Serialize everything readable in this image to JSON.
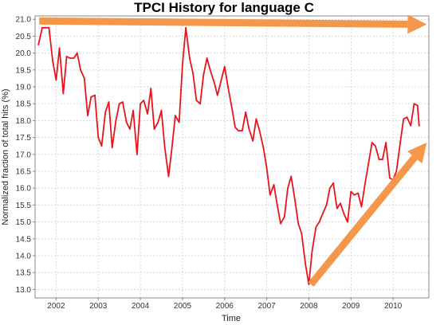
{
  "chart_data": {
    "type": "line",
    "title": "TPCI History for language C",
    "xlabel": "Time",
    "ylabel": "Normalized fraction of total hits (%)",
    "xlim": [
      2001.5,
      2010.85
    ],
    "ylim": [
      12.75,
      21.1
    ],
    "x_ticks": [
      "2002",
      "2003",
      "2004",
      "2005",
      "2006",
      "2007",
      "2008",
      "2009",
      "2010"
    ],
    "y_ticks": [
      "13.0",
      "13.5",
      "14.0",
      "14.5",
      "15.0",
      "15.5",
      "16.0",
      "16.5",
      "17.0",
      "17.5",
      "18.0",
      "18.5",
      "19.0",
      "19.5",
      "20.0",
      "20.5",
      "21.0"
    ],
    "grid": true,
    "legend": "none",
    "series": [
      {
        "color": "#e8141c",
        "points": [
          [
            2001.58,
            20.25
          ],
          [
            2001.67,
            20.75
          ],
          [
            2001.75,
            20.75
          ],
          [
            2001.83,
            20.75
          ],
          [
            2001.92,
            19.75
          ],
          [
            2002.0,
            19.2
          ],
          [
            2002.08,
            20.15
          ],
          [
            2002.17,
            18.8
          ],
          [
            2002.25,
            19.9
          ],
          [
            2002.33,
            19.85
          ],
          [
            2002.42,
            19.85
          ],
          [
            2002.5,
            20.0
          ],
          [
            2002.58,
            19.5
          ],
          [
            2002.67,
            19.25
          ],
          [
            2002.75,
            18.15
          ],
          [
            2002.83,
            18.7
          ],
          [
            2002.92,
            18.75
          ],
          [
            2003.0,
            17.5
          ],
          [
            2003.08,
            17.25
          ],
          [
            2003.17,
            18.25
          ],
          [
            2003.25,
            18.55
          ],
          [
            2003.33,
            17.2
          ],
          [
            2003.42,
            18.0
          ],
          [
            2003.5,
            18.5
          ],
          [
            2003.58,
            18.55
          ],
          [
            2003.67,
            17.95
          ],
          [
            2003.75,
            17.75
          ],
          [
            2003.83,
            18.3
          ],
          [
            2003.92,
            17.0
          ],
          [
            2004.0,
            18.5
          ],
          [
            2004.08,
            18.6
          ],
          [
            2004.17,
            18.2
          ],
          [
            2004.25,
            18.95
          ],
          [
            2004.33,
            17.75
          ],
          [
            2004.42,
            17.95
          ],
          [
            2004.5,
            18.3
          ],
          [
            2004.58,
            17.2
          ],
          [
            2004.67,
            16.35
          ],
          [
            2004.75,
            17.2
          ],
          [
            2004.83,
            18.15
          ],
          [
            2004.92,
            17.95
          ],
          [
            2005.0,
            19.65
          ],
          [
            2005.08,
            20.75
          ],
          [
            2005.17,
            19.85
          ],
          [
            2005.25,
            19.4
          ],
          [
            2005.33,
            18.6
          ],
          [
            2005.42,
            18.5
          ],
          [
            2005.5,
            19.35
          ],
          [
            2005.58,
            19.85
          ],
          [
            2005.67,
            19.45
          ],
          [
            2005.75,
            19.15
          ],
          [
            2005.83,
            18.75
          ],
          [
            2005.92,
            19.2
          ],
          [
            2006.0,
            19.6
          ],
          [
            2006.08,
            19.0
          ],
          [
            2006.17,
            18.4
          ],
          [
            2006.25,
            17.8
          ],
          [
            2006.33,
            17.7
          ],
          [
            2006.42,
            17.7
          ],
          [
            2006.5,
            18.25
          ],
          [
            2006.58,
            17.75
          ],
          [
            2006.67,
            17.4
          ],
          [
            2006.75,
            18.05
          ],
          [
            2006.83,
            17.7
          ],
          [
            2006.92,
            17.2
          ],
          [
            2007.0,
            16.6
          ],
          [
            2007.08,
            15.8
          ],
          [
            2007.17,
            16.1
          ],
          [
            2007.25,
            15.5
          ],
          [
            2007.33,
            14.95
          ],
          [
            2007.42,
            15.15
          ],
          [
            2007.5,
            16.0
          ],
          [
            2007.58,
            16.35
          ],
          [
            2007.67,
            15.65
          ],
          [
            2007.75,
            14.95
          ],
          [
            2007.83,
            14.65
          ],
          [
            2007.92,
            13.75
          ],
          [
            2008.0,
            13.15
          ],
          [
            2008.08,
            14.15
          ],
          [
            2008.17,
            14.85
          ],
          [
            2008.25,
            15.0
          ],
          [
            2008.33,
            15.25
          ],
          [
            2008.42,
            15.5
          ],
          [
            2008.5,
            16.0
          ],
          [
            2008.58,
            16.15
          ],
          [
            2008.67,
            15.4
          ],
          [
            2008.75,
            15.55
          ],
          [
            2008.83,
            15.25
          ],
          [
            2008.92,
            15.0
          ],
          [
            2009.0,
            15.9
          ],
          [
            2009.08,
            15.8
          ],
          [
            2009.17,
            15.85
          ],
          [
            2009.25,
            15.45
          ],
          [
            2009.33,
            16.1
          ],
          [
            2009.42,
            16.75
          ],
          [
            2009.5,
            17.35
          ],
          [
            2009.58,
            17.25
          ],
          [
            2009.67,
            16.85
          ],
          [
            2009.75,
            16.85
          ],
          [
            2009.83,
            17.35
          ],
          [
            2009.92,
            16.3
          ],
          [
            2010.0,
            16.25
          ],
          [
            2010.08,
            16.5
          ],
          [
            2010.17,
            17.35
          ],
          [
            2010.25,
            18.05
          ],
          [
            2010.33,
            18.1
          ],
          [
            2010.42,
            17.85
          ],
          [
            2010.5,
            18.5
          ],
          [
            2010.58,
            18.45
          ],
          [
            2010.62,
            17.85
          ]
        ]
      }
    ],
    "annotations": [
      {
        "type": "arrow",
        "color": "#f4974a",
        "from": [
          2001.6,
          20.95
        ],
        "to": [
          2010.8,
          20.85
        ]
      },
      {
        "type": "arrow",
        "color": "#f4974a",
        "from": [
          2008.05,
          13.15
        ],
        "to": [
          2010.8,
          17.35
        ]
      }
    ]
  }
}
